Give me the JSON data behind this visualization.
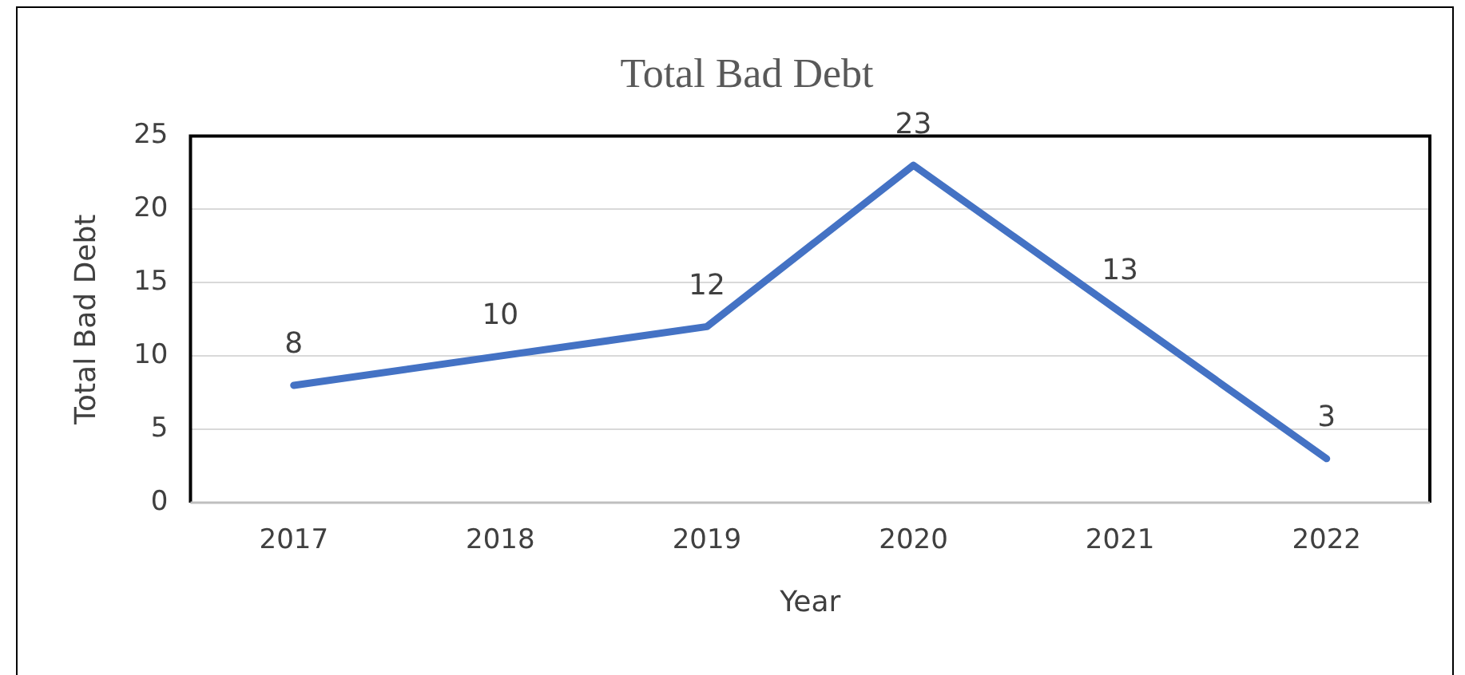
{
  "chart_data": {
    "type": "line",
    "title": "Total Bad Debt",
    "xlabel": "Year",
    "ylabel": "Total Bad Debt",
    "categories": [
      "2017",
      "2018",
      "2019",
      "2020",
      "2021",
      "2022"
    ],
    "series": [
      {
        "color": "#4472c4",
        "values": [
          8,
          10,
          12,
          23,
          13,
          3
        ]
      }
    ],
    "ylim": [
      0,
      25
    ],
    "yticks": [
      0,
      5,
      10,
      15,
      20,
      25
    ],
    "grid": "y",
    "legend": false,
    "marker": "none",
    "line_style": "solid",
    "data_labels": true
  }
}
